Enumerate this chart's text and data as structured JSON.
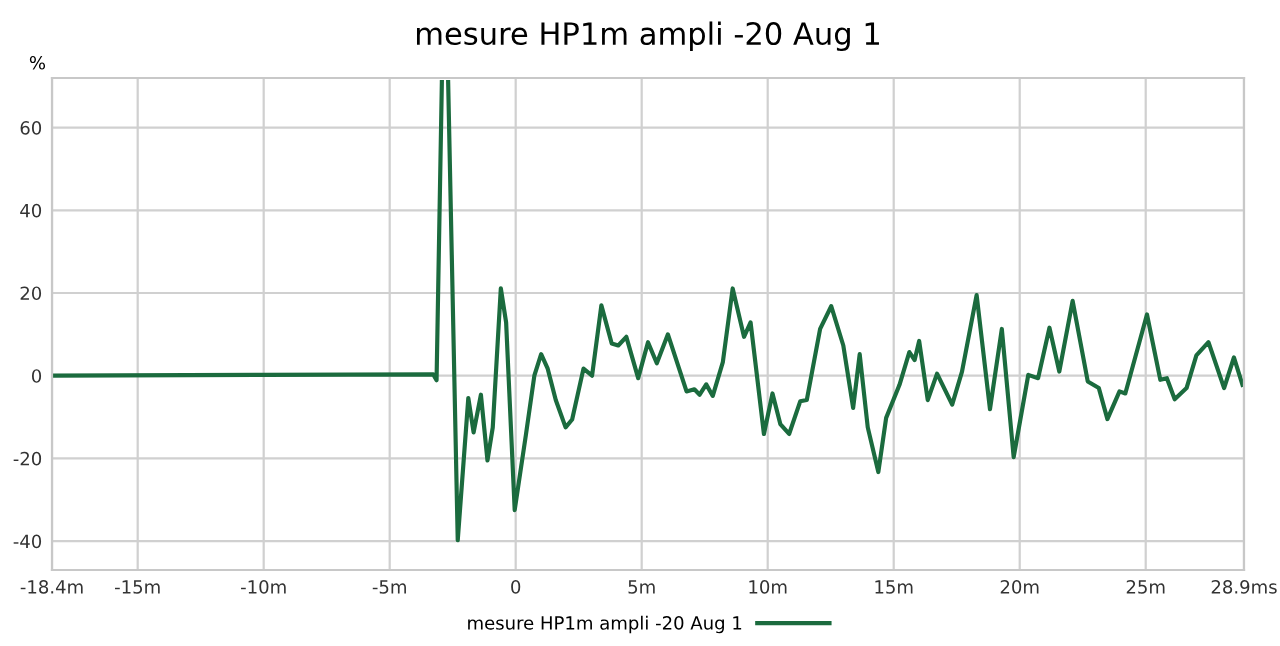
{
  "chart_data": {
    "type": "line",
    "title": "mesure HP1m ampli -20 Aug 1",
    "ylabel": "%",
    "xlim": [
      -18.4,
      28.9
    ],
    "ylim": [
      -47,
      72
    ],
    "xticks": [
      {
        "value": -18.4,
        "label": "-18.4m"
      },
      {
        "value": -15,
        "label": "-15m"
      },
      {
        "value": -10,
        "label": "-10m"
      },
      {
        "value": -5,
        "label": "-5m"
      },
      0,
      {
        "value": 5,
        "label": "5m"
      },
      {
        "value": 10,
        "label": "10m"
      },
      {
        "value": 15,
        "label": "15m"
      },
      {
        "value": 20,
        "label": "20m"
      },
      {
        "value": 25,
        "label": "25m"
      },
      {
        "value": 28.9,
        "label": "28.9ms"
      }
    ],
    "yticks": [
      -40,
      -20,
      0,
      20,
      40,
      60
    ],
    "grid": true,
    "legend": "bottom",
    "marker": "none",
    "line_style": "solid",
    "series": [
      {
        "name": "mesure HP1m ampli -20 Aug 1",
        "color": "#1b6b3e",
        "x": [
          -18.4,
          -10,
          -3.27,
          -3.14,
          -2.93,
          -2.8,
          -2.68,
          -2.3,
          -1.88,
          -1.67,
          -1.38,
          -1.12,
          -0.91,
          -0.59,
          -0.38,
          -0.04,
          0.41,
          0.74,
          1.01,
          1.27,
          1.59,
          1.98,
          2.24,
          2.69,
          3.03,
          3.4,
          3.81,
          4.07,
          4.39,
          4.86,
          5.25,
          5.6,
          6.04,
          6.78,
          7.09,
          7.3,
          7.56,
          7.82,
          8.22,
          8.61,
          9.06,
          9.32,
          9.85,
          10.19,
          10.5,
          10.85,
          11.29,
          11.55,
          12.08,
          12.52,
          13.0,
          13.39,
          13.65,
          13.97,
          14.39,
          14.7,
          15.23,
          15.62,
          15.83,
          16.01,
          16.35,
          16.72,
          17.32,
          17.71,
          18.29,
          18.82,
          19.29,
          19.76,
          20.34,
          20.73,
          21.18,
          21.57,
          22.1,
          22.7,
          23.14,
          23.48,
          23.96,
          24.19,
          25.05,
          25.58,
          25.84,
          26.15,
          26.62,
          27.01,
          27.49,
          28.11,
          28.5,
          28.84
        ],
        "values": [
          0,
          0.2,
          0.3,
          -1.1,
          71,
          null,
          71,
          -39.8,
          -5.4,
          -13.7,
          -4.6,
          -20.5,
          -12.5,
          21.1,
          12.9,
          -32.5,
          -14.1,
          0,
          5.2,
          1.7,
          -5.9,
          -12.5,
          -10.6,
          1.7,
          0,
          17,
          7.8,
          7.3,
          9.4,
          -0.6,
          8.1,
          3.0,
          10,
          -3.8,
          -3.3,
          -4.6,
          -2.1,
          -4.9,
          3.3,
          21.1,
          9.4,
          12.9,
          -14.1,
          -4.3,
          -11.7,
          -14.1,
          -6.2,
          -5.9,
          11.3,
          16.8,
          7.3,
          -7.8,
          5.2,
          -12.5,
          -23.3,
          -10.2,
          -2.2,
          5.7,
          3.8,
          8.4,
          -5.9,
          0.5,
          -7.0,
          1.0,
          19.5,
          -8.1,
          11.3,
          -19.7,
          0.2,
          -0.6,
          11.6,
          1.0,
          18.1,
          -1.4,
          -3.0,
          -10.5,
          -3.8,
          -4.3,
          14.8,
          -1.0,
          -0.6,
          -5.7,
          -3.0,
          4.9,
          8.1,
          -3.0,
          4.4,
          -2.2
        ]
      }
    ]
  }
}
